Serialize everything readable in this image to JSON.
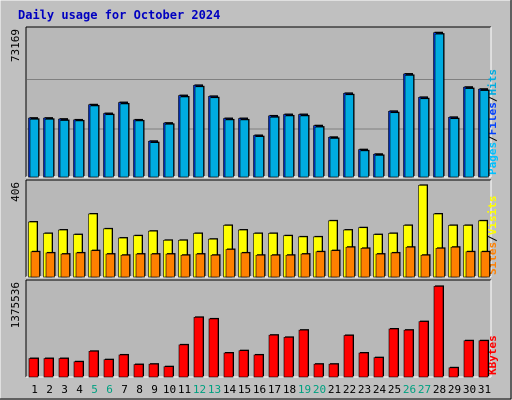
{
  "chart_data": {
    "type": "bar",
    "title": "Daily usage for October 2024",
    "categories": [
      "1",
      "2",
      "3",
      "4",
      "5",
      "6",
      "7",
      "8",
      "9",
      "10",
      "11",
      "12",
      "13",
      "14",
      "15",
      "16",
      "17",
      "18",
      "19",
      "20",
      "21",
      "22",
      "23",
      "24",
      "25",
      "26",
      "27",
      "28",
      "29",
      "30",
      "31"
    ],
    "weekend_days": [
      "5",
      "6",
      "12",
      "13",
      "19",
      "20",
      "26",
      "27"
    ],
    "panels": [
      {
        "name": "hits-files-pages",
        "ymax_label": "73169",
        "ymax": 73169,
        "right_label": {
          "parts": [
            "Pages",
            "/",
            "Files",
            "/",
            "Hits"
          ]
        },
        "series": [
          {
            "name": "Hits",
            "values": [
              29500,
              29500,
              29000,
              28600,
              36200,
              31800,
              37300,
              28600,
              17900,
              27000,
              40800,
              45900,
              40400,
              29300,
              29300,
              20800,
              30600,
              31300,
              31300,
              25700,
              19900,
              41900,
              13700,
              11400,
              32900,
              51600,
              39900,
              72300,
              29900,
              45000,
              44000
            ]
          },
          {
            "name": "Files",
            "values": [
              28900,
              28900,
              28300,
              28100,
              35600,
              31200,
              36600,
              28100,
              17200,
              26400,
              40100,
              45200,
              39700,
              28600,
              28600,
              20200,
              29900,
              30600,
              30600,
              25000,
              19300,
              41200,
              13100,
              10800,
              32200,
              50900,
              39200,
              71600,
              29200,
              44300,
              43300
            ]
          }
        ]
      },
      {
        "name": "visits-sites",
        "ymax_label": "406",
        "ymax": 406,
        "right_label": {
          "parts": [
            "Sites",
            "/",
            "Visits"
          ]
        },
        "series": [
          {
            "name": "Visits",
            "values": [
              240,
              190,
              205,
              185,
              275,
              210,
              170,
              180,
              200,
              160,
              160,
              190,
              165,
              225,
              205,
              190,
              190,
              180,
              175,
              175,
              245,
              205,
              215,
              185,
              190,
              225,
              400,
              275,
              225,
              225,
              245
            ]
          },
          {
            "name": "Sites",
            "values": [
              110,
              105,
              100,
              105,
              115,
              100,
              95,
              100,
              100,
              100,
              95,
              100,
              95,
              120,
              105,
              95,
              95,
              95,
              100,
              110,
              115,
              130,
              125,
              100,
              105,
              130,
              95,
              125,
              130,
              110,
              110
            ]
          }
        ]
      },
      {
        "name": "kbytes",
        "ymax_label": "1375536",
        "ymax": 1375536,
        "right_label": {
          "parts": [
            "KBytes"
          ]
        },
        "series": [
          {
            "name": "KBytes",
            "values": [
              273000,
              273000,
              273000,
              225000,
              380000,
              256000,
              326000,
              184000,
              190000,
              152000,
              475000,
              882000,
              859000,
              355000,
              389000,
              326000,
              619000,
              586000,
              693000,
              190000,
              190000,
              614000,
              355000,
              286000,
              710000,
              693000,
              819000,
              1340000,
              136000,
              536000,
              536000
            ]
          }
        ]
      }
    ],
    "colors": {
      "background": "#c0c0c0",
      "plot_bg": "#b8b8b8",
      "title": "#0000c0",
      "hits": "#00ace0",
      "files": "#0040ff",
      "pages": "#00c0ff",
      "visits": "#ffff00",
      "sites": "#ff8000",
      "kbytes": "#ff0000",
      "weekend": "#00a080",
      "grid": "#808080"
    }
  }
}
